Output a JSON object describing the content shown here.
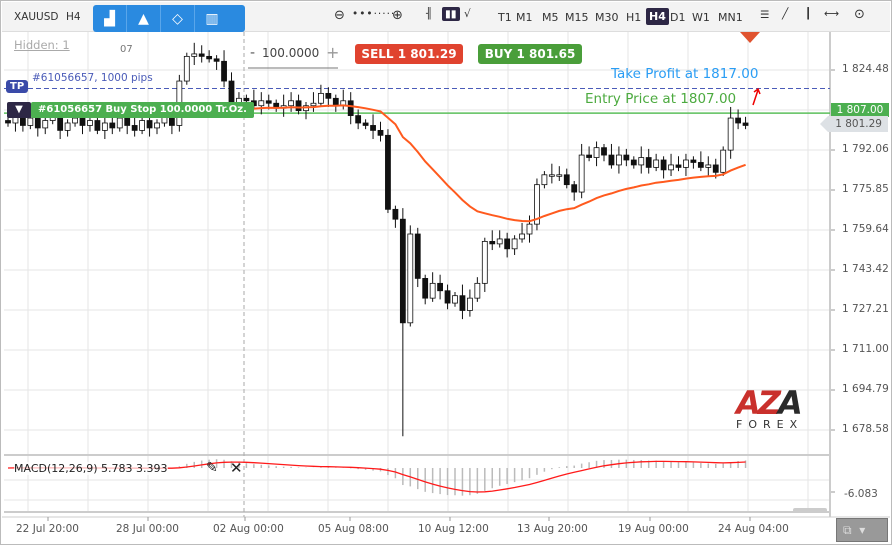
{
  "toolbar": {
    "symbol": "XAUUSD",
    "period": "H4",
    "tools": [
      "bar-chart-icon",
      "shapes-icon",
      "diamond-icon",
      "indicators-icon"
    ],
    "timeframes": [
      "T1",
      "M1",
      "M5",
      "M15",
      "M30",
      "H1",
      "H4",
      "D1",
      "W1",
      "MN1"
    ],
    "active_timeframe": "H4"
  },
  "chart": {
    "hidden_label": "Hidden: 1",
    "grid_label": "07",
    "quantity": "100.0000",
    "quantity_minus": "-",
    "quantity_plus": "+",
    "sell_label": "SELL 1 801.29",
    "buy_label": "BUY 1 801.65",
    "tp_tag": "TP",
    "tp_order_label": "#61056657, 1000 pips",
    "order_label": "#61056657 Buy Stop 100.0000 Tr.Oz.",
    "take_profit_text": "Take Profit at 1817.00",
    "entry_text": "Entry Price at 1807.00",
    "logo_text": "AZA",
    "logo_sub": "FOREX",
    "colors": {
      "sell": "#e0432f",
      "buy": "#4caa3f",
      "tp": "#4a5bb8",
      "entry": "#5bbf5b",
      "ma": "#ff5a1e",
      "macd": "#ff1a1a",
      "take_profit_text": "#2a9df4"
    }
  },
  "price_axis": {
    "ticks": [
      "1 824.48",
      "1 792.06",
      "1 775.85",
      "1 759.64",
      "1 743.42",
      "1 727.21",
      "1 711.00",
      "1 694.79",
      "1 678.58"
    ],
    "entry_badge": "1 807.00",
    "current_badge": "1 801.29"
  },
  "macd": {
    "label": "MACD(12,26,9) 5.783 3.393",
    "tick": "-6.083"
  },
  "time_axis": [
    "22 Jul 20:00",
    "28 Jul 00:00",
    "02 Aug 00:00",
    "05 Aug 08:00",
    "10 Aug 12:00",
    "13 Aug 20:00",
    "19 Aug 00:00",
    "24 Aug 04:00"
  ],
  "chart_data": {
    "type": "candlestick",
    "symbol": "XAUUSD",
    "timeframe": "H4",
    "closes": [
      1803,
      1806,
      1802,
      1805,
      1801,
      1804,
      1806,
      1800,
      1803,
      1805,
      1802,
      1804,
      1800,
      1803,
      1801,
      1805,
      1802,
      1800,
      1804,
      1801,
      1803,
      1806,
      1802,
      1820,
      1830,
      1831,
      1830,
      1829,
      1828,
      1820,
      1811,
      1813,
      1812,
      1810,
      1812,
      1811,
      1809,
      1810,
      1812,
      1808,
      1810,
      1811,
      1815,
      1813,
      1810,
      1812,
      1806,
      1803,
      1802,
      1800,
      1798,
      1768,
      1764,
      1722,
      1758,
      1740,
      1732,
      1738,
      1735,
      1730,
      1733,
      1727,
      1732,
      1738,
      1755,
      1754,
      1756,
      1752,
      1756,
      1758,
      1762,
      1778,
      1782,
      1782,
      1782,
      1778,
      1775,
      1790,
      1789,
      1793,
      1790,
      1786,
      1790,
      1788,
      1786,
      1789,
      1785,
      1788,
      1784,
      1786,
      1785,
      1788,
      1787,
      1785,
      1786,
      1783,
      1792,
      1805,
      1803,
      1802
    ],
    "spike_low": 1676,
    "ylim": [
      1672,
      1836
    ]
  }
}
